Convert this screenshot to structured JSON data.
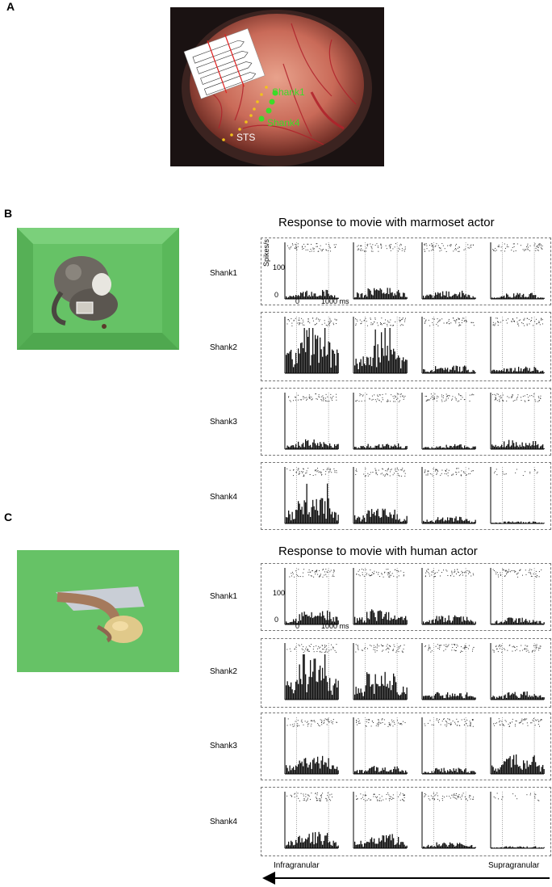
{
  "panels": {
    "a": {
      "letter": "A"
    },
    "b": {
      "letter": "B",
      "title": "Response to movie with marmoset actor"
    },
    "c": {
      "letter": "C",
      "title": "Response to movie with human actor"
    }
  },
  "photo_a": {
    "labels": {
      "shank1": "Shank1",
      "shank4": "Shank4",
      "sts": "STS"
    },
    "colors": {
      "electrode": "#3cdc28",
      "sts_dots": "#f2c21a",
      "label_green": "#3cdc28",
      "label_sts": "#ffffff"
    }
  },
  "shank_labels": [
    "Shank1",
    "Shank2",
    "Shank3",
    "Shank4"
  ],
  "axes": {
    "ylabel": "Spikes/s",
    "yticks": [
      "100",
      "0"
    ],
    "xtick_left": "0",
    "xtick_right": "1000 ms"
  },
  "bottom_axis": {
    "left_label": "Infragranular",
    "right_label": "Supragranular"
  },
  "colors": {
    "bar": "#111111",
    "stimulus_green": "#66c266",
    "box_border": "#777777"
  },
  "chart_data": [
    {
      "type": "bar",
      "title": "Response to movie with marmoset actor",
      "ylabel": "Spikes/s",
      "ylim": [
        0,
        150
      ],
      "x_range_ms": [
        -300,
        1300
      ],
      "rows": [
        "Shank1",
        "Shank2",
        "Shank3",
        "Shank4"
      ],
      "columns": 4,
      "column_order": "Infragranular to Supragranular",
      "mean_rates": [
        [
          18,
          25,
          16,
          12
        ],
        [
          85,
          60,
          15,
          14
        ],
        [
          20,
          12,
          10,
          18
        ],
        [
          50,
          30,
          14,
          4
        ]
      ]
    },
    {
      "type": "bar",
      "title": "Response to movie with human actor",
      "ylabel": "Spikes/s",
      "ylim": [
        0,
        150
      ],
      "x_range_ms": [
        -300,
        1300
      ],
      "rows": [
        "Shank1",
        "Shank2",
        "Shank3",
        "Shank4"
      ],
      "columns": 4,
      "column_order": "Infragranular to Supragranular",
      "mean_rates": [
        [
          28,
          30,
          18,
          14
        ],
        [
          80,
          55,
          15,
          16
        ],
        [
          35,
          16,
          12,
          38
        ],
        [
          32,
          28,
          12,
          4
        ]
      ]
    }
  ]
}
